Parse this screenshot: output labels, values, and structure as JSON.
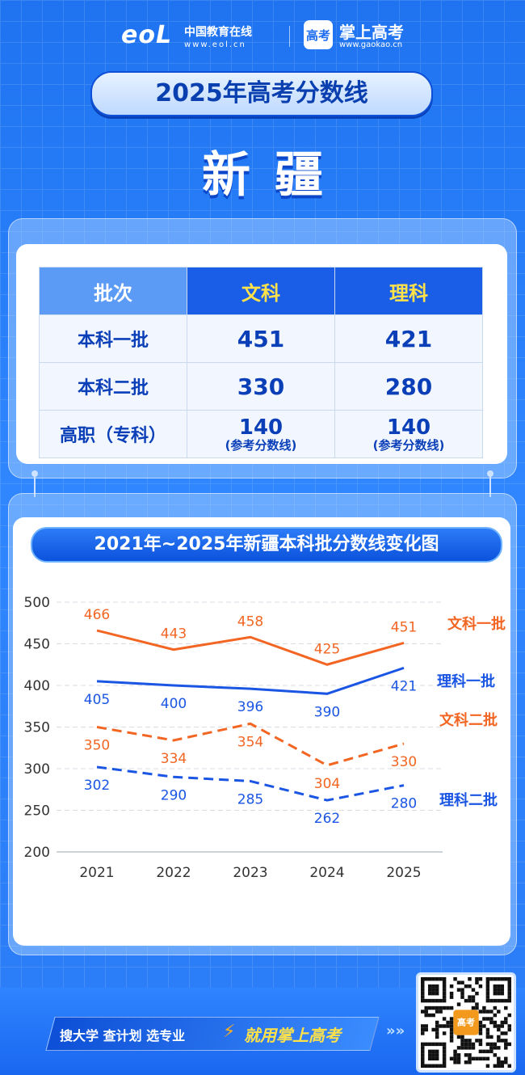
{
  "header": {
    "eol_logo": "eoL",
    "eol_name": "中国教育在线",
    "eol_url": "www.eol.cn",
    "gaokao_icon": "高考",
    "gaokao_name": "掌上高考",
    "gaokao_url": "www.gaokao.cn"
  },
  "title": "2025年高考分数线",
  "province": "新疆",
  "score_table": {
    "headers": [
      "批次",
      "文科",
      "理科"
    ],
    "rows": [
      {
        "batch": "本科一批",
        "wenke": "451",
        "like": "421"
      },
      {
        "batch": "本科二批",
        "wenke": "330",
        "like": "280"
      },
      {
        "batch": "高职（专科）",
        "wenke": "140",
        "like": "140",
        "wenke_note": "(参考分数线)",
        "like_note": "(参考分数线)"
      }
    ]
  },
  "chart_title": "2021年~2025年新疆本科批分数线变化图",
  "chart_data": {
    "type": "line",
    "title": "2021年~2025年新疆本科批分数线变化图",
    "x": [
      "2021",
      "2022",
      "2023",
      "2024",
      "2025"
    ],
    "yticks": [
      "500",
      "450",
      "400",
      "350",
      "300",
      "250",
      "200"
    ],
    "ylim": [
      200,
      500
    ],
    "grid": true,
    "series": [
      {
        "name": "文科一批",
        "values": [
          466,
          443,
          458,
          425,
          451
        ],
        "color": "#f26522",
        "dashed": false,
        "labels_above": true
      },
      {
        "name": "理科一批",
        "values": [
          405,
          400,
          396,
          390,
          421
        ],
        "color": "#1a55e3",
        "dashed": false,
        "labels_above": false
      },
      {
        "name": "文科二批",
        "values": [
          350,
          334,
          354,
          304,
          330
        ],
        "color": "#f26522",
        "dashed": true,
        "labels_above": false
      },
      {
        "name": "理科二批",
        "values": [
          302,
          290,
          285,
          262,
          280
        ],
        "color": "#1a55e3",
        "dashed": true,
        "labels_above": false
      }
    ]
  },
  "footer": {
    "slogan_a": "搜大学  查计划  选专业",
    "slogan_b": "就用掌上高考",
    "bolt_icon": "⚡",
    "arrows": "»»",
    "qr_label": "高考"
  }
}
